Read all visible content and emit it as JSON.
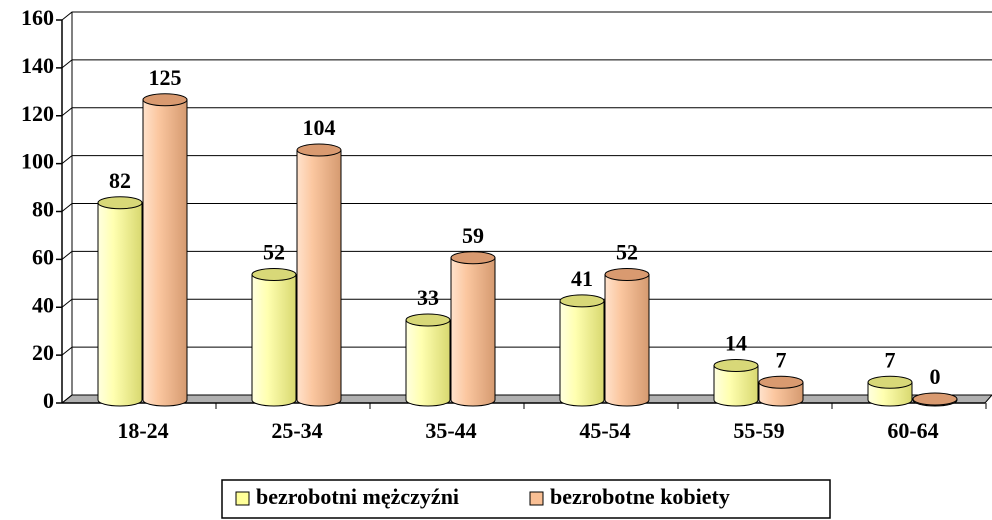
{
  "chart_data": {
    "type": "bar",
    "categories": [
      "18-24",
      "25-34",
      "35-44",
      "45-54",
      "55-59",
      "60-64"
    ],
    "series": [
      {
        "name": "bezrobotni mężczyźni",
        "color": "#ffff99",
        "values": [
          82,
          52,
          33,
          41,
          14,
          7
        ]
      },
      {
        "name": "bezrobotne kobiety",
        "color": "#f9bf94",
        "values": [
          125,
          104,
          59,
          52,
          7,
          0
        ]
      }
    ],
    "ylim": [
      0,
      160
    ],
    "yticks": [
      0,
      20,
      40,
      60,
      80,
      100,
      120,
      140,
      160
    ],
    "grid": true,
    "legend": "bottom"
  }
}
